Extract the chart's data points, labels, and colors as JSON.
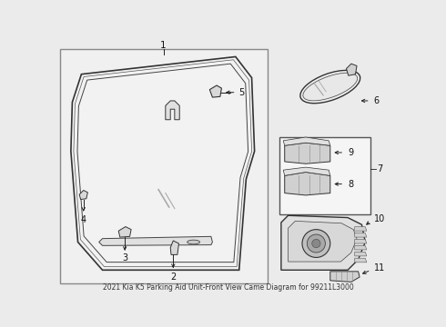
{
  "title": "2021 Kia K5 Parking Aid Unit-Front View Came Diagram for 99211L3000",
  "bg_color": "#ebebeb",
  "main_box_color": "#f0f0f0",
  "main_box_edge": "#999999",
  "line_color": "#222222",
  "part_fill": "#d8d8d8",
  "part_edge": "#333333",
  "windshield_fill": "#f5f5f5",
  "windshield_edge": "#333333"
}
